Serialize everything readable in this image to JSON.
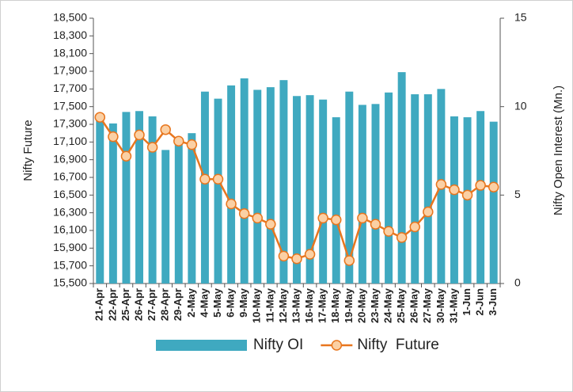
{
  "chart_data": {
    "type": "combo",
    "categories": [
      "21-Apr",
      "22-Apr",
      "25-Apr",
      "26-Apr",
      "27-Apr",
      "28-Apr",
      "29-Apr",
      "2-May",
      "4-May",
      "5-May",
      "6-May",
      "9-May",
      "10-May",
      "11-May",
      "12-May",
      "13-May",
      "16-May",
      "17-May",
      "18-May",
      "19-May",
      "20-May",
      "23-May",
      "24-May",
      "25-May",
      "26-May",
      "27-May",
      "30-May",
      "31-May",
      "1-Jun",
      "2-Jun",
      "3-Jun"
    ],
    "series": [
      {
        "name": "Nifty OI",
        "type": "bar",
        "axis": "y2",
        "color": "#3fa9c0",
        "values": [
          9.3,
          9.05,
          9.7,
          9.75,
          9.45,
          7.55,
          7.95,
          8.5,
          10.85,
          10.45,
          11.2,
          11.6,
          10.95,
          11.1,
          11.5,
          10.6,
          10.65,
          10.4,
          9.4,
          10.85,
          10.1,
          10.15,
          10.8,
          11.95,
          10.7,
          10.7,
          11.0,
          9.45,
          9.4,
          9.75,
          9.15
        ]
      },
      {
        "name": "Nifty  Future",
        "type": "line",
        "color": "#e8761e",
        "values": [
          17380,
          17160,
          16940,
          17180,
          17040,
          17240,
          17110,
          17070,
          16680,
          16680,
          16400,
          16290,
          16240,
          16170,
          15810,
          15780,
          15830,
          16240,
          16220,
          15760,
          16240,
          16170,
          16090,
          16020,
          16140,
          16310,
          16620,
          16560,
          16500,
          16610,
          16590
        ]
      }
    ],
    "ylabel": "Nifty Future",
    "y2label": "Nifty Open Interest (Mn.)",
    "ylim": [
      15500,
      18500
    ],
    "yticks": [
      {
        "value": 15500,
        "label": "15,500"
      },
      {
        "value": 15700,
        "label": "15,700"
      },
      {
        "value": 15900,
        "label": "15,900"
      },
      {
        "value": 16100,
        "label": "16,100"
      },
      {
        "value": 16300,
        "label": "16,300"
      },
      {
        "value": 16500,
        "label": "16,500"
      },
      {
        "value": 16700,
        "label": "16,700"
      },
      {
        "value": 16900,
        "label": "16,900"
      },
      {
        "value": 17100,
        "label": "17,100"
      },
      {
        "value": 17300,
        "label": "17,300"
      },
      {
        "value": 17500,
        "label": "17,500"
      },
      {
        "value": 17700,
        "label": "17,700"
      },
      {
        "value": 17900,
        "label": "17,900"
      },
      {
        "value": 18100,
        "label": "18,100"
      },
      {
        "value": 18300,
        "label": "18,300"
      },
      {
        "value": 18500,
        "label": "18,500"
      }
    ],
    "y2lim": [
      0,
      15
    ],
    "y2ticks": [
      0,
      5,
      10,
      15
    ],
    "legend": "bottom"
  }
}
